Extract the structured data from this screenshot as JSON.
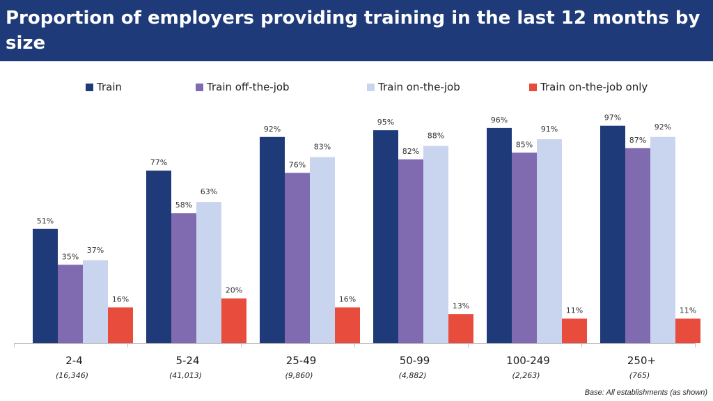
{
  "header": {
    "title": "Proportion of employers providing training in the last 12 months by size"
  },
  "footer": {
    "base_note": "Base: All establishments (as shown)"
  },
  "colors": {
    "header_bg": "#1f3a78",
    "train": "#1f3a78",
    "train_off_the_job": "#806bb0",
    "train_on_the_job": "#c9d5ef",
    "train_on_the_job_only": "#e84c3d"
  },
  "chart_data": {
    "type": "bar",
    "title": "Proportion of employers providing training in the last 12 months by size",
    "xlabel": "",
    "ylabel": "",
    "ylim": [
      0,
      100
    ],
    "grid": false,
    "legend_position": "top",
    "categories": [
      "2-4",
      "5-24",
      "25-49",
      "50-99",
      "100-249",
      "250+"
    ],
    "category_bases": [
      "(16,346)",
      "(41,013)",
      "(9,860)",
      "(4,882)",
      "(2,263)",
      "(765)"
    ],
    "series": [
      {
        "name": "Train",
        "color": "#1f3a78",
        "values": [
          51,
          77,
          92,
          95,
          96,
          97
        ],
        "labels": [
          "51%",
          "77%",
          "92%",
          "95%",
          "96%",
          "97%"
        ]
      },
      {
        "name": "Train off-the-job",
        "color": "#806bb0",
        "values": [
          35,
          58,
          76,
          82,
          85,
          87
        ],
        "labels": [
          "35%",
          "58%",
          "76%",
          "82%",
          "85%",
          "87%"
        ]
      },
      {
        "name": "Train on-the-job",
        "color": "#c9d5ef",
        "values": [
          37,
          63,
          83,
          88,
          91,
          92
        ],
        "labels": [
          "37%",
          "63%",
          "83%",
          "88%",
          "91%",
          "92%"
        ]
      },
      {
        "name": "Train on-the-job only",
        "color": "#e84c3d",
        "values": [
          16,
          20,
          16,
          13,
          11,
          11
        ],
        "labels": [
          "16%",
          "20%",
          "16%",
          "13%",
          "11%",
          "11%"
        ]
      }
    ]
  }
}
